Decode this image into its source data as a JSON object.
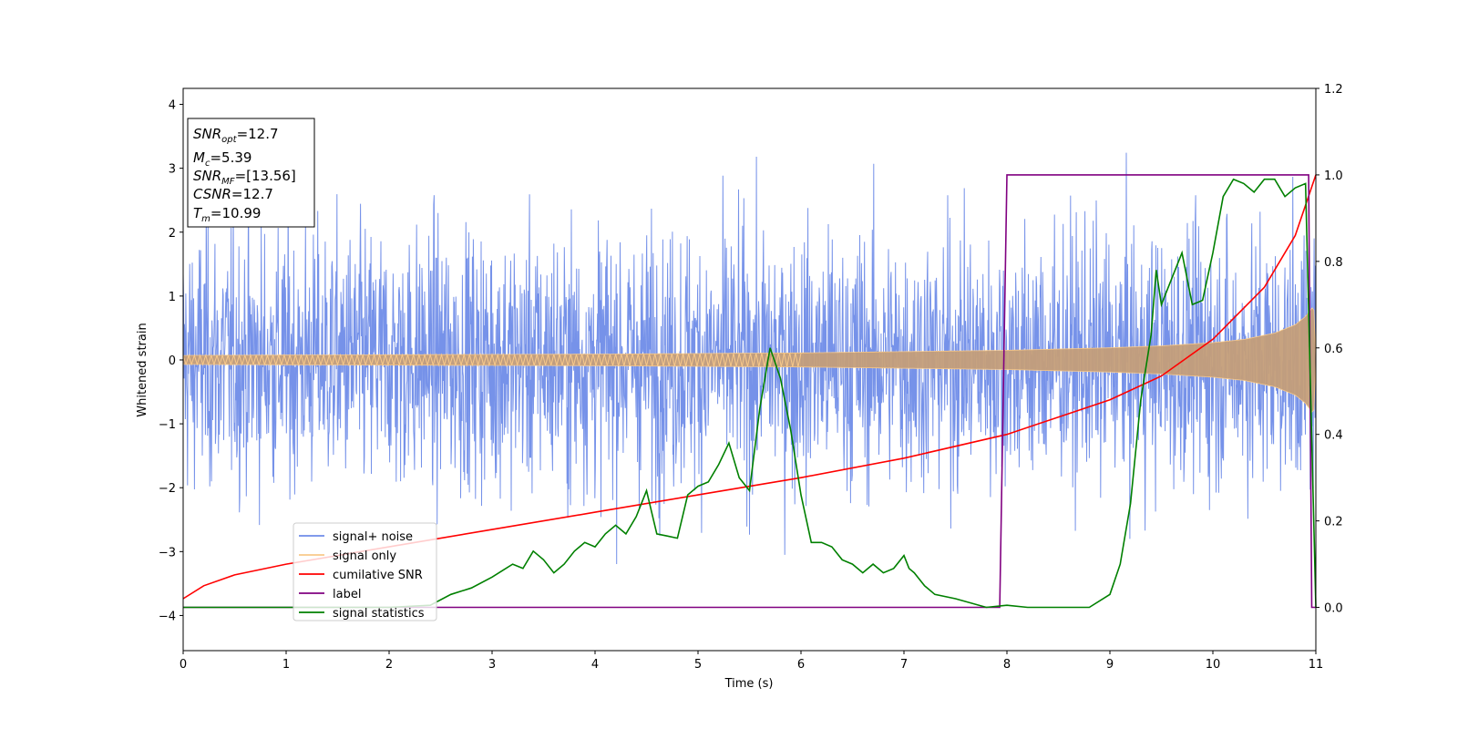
{
  "chart_data": {
    "type": "line",
    "xlabel": "Time (s)",
    "ylabel": "Whitened strain",
    "ylabel_right": "",
    "xlim": [
      0,
      11
    ],
    "ylim": [
      -4.55,
      4.25
    ],
    "ylim_right": [
      -0.1,
      1.2
    ],
    "x_ticks": [
      "0",
      "1",
      "2",
      "3",
      "4",
      "5",
      "6",
      "7",
      "8",
      "9",
      "10",
      "11"
    ],
    "y_ticks": [
      "−4",
      "−3",
      "−2",
      "−1",
      "0",
      "1",
      "2",
      "3",
      "4"
    ],
    "y_ticks_right": [
      "0.0",
      "0.2",
      "0.4",
      "0.6",
      "0.8",
      "1.0",
      "1.2"
    ],
    "grid": false,
    "info_box": {
      "snr_opt": {
        "main": "SNR",
        "sub": "opt",
        "value": "=12.7"
      },
      "mc": {
        "main": "M",
        "sub": "c",
        "value": "=5.39"
      },
      "snr_mf": {
        "main": "SNR",
        "sub": "MF",
        "value": "=[13.56]"
      },
      "csnr": {
        "main": "CSNR",
        "sub": "",
        "value": "=12.7"
      },
      "tm": {
        "main": "T",
        "sub": "m",
        "value": "=10.99"
      }
    },
    "legend": {
      "placement": "lower-left",
      "entries": [
        {
          "label": "signal+ noise",
          "color": "#6f8ce8"
        },
        {
          "label": "signal only",
          "color": "#f8c98a"
        },
        {
          "label": "cumilative SNR",
          "color": "#ff0000"
        },
        {
          "label": "label",
          "color": "#800080"
        },
        {
          "label": "signal statistics",
          "color": "#008000"
        }
      ]
    },
    "series": [
      {
        "name": "signal+ noise",
        "axis": "left",
        "color": "#6f8ce8",
        "description_kind": "noise_band",
        "amplitude_typical": 2.3,
        "amplitude_peak": 3.9
      },
      {
        "name": "signal only",
        "axis": "left",
        "color": "#f8c98a",
        "envelope": {
          "x": [
            0,
            2,
            4,
            6,
            7,
            8,
            9,
            9.5,
            10,
            10.3,
            10.6,
            10.8,
            10.9,
            10.98,
            11
          ],
          "y": [
            0.07,
            0.08,
            0.09,
            0.11,
            0.13,
            0.15,
            0.19,
            0.22,
            0.27,
            0.32,
            0.42,
            0.55,
            0.68,
            0.85,
            0.0
          ]
        }
      },
      {
        "name": "cumilative SNR",
        "axis": "right",
        "color": "#ff0000",
        "x": [
          0,
          0.2,
          0.5,
          1,
          2,
          3,
          4,
          5,
          6,
          7,
          8,
          9,
          9.5,
          10,
          10.5,
          10.8,
          11
        ],
        "y": [
          0.02,
          0.05,
          0.075,
          0.1,
          0.14,
          0.18,
          0.22,
          0.26,
          0.3,
          0.345,
          0.4,
          0.48,
          0.535,
          0.62,
          0.74,
          0.86,
          1.0
        ]
      },
      {
        "name": "label",
        "axis": "right",
        "color": "#800080",
        "x": [
          0,
          7.93,
          8.0,
          10.93,
          10.96,
          11
        ],
        "y": [
          0.0,
          0.0,
          1.0,
          1.0,
          0.0,
          0.0
        ]
      },
      {
        "name": "signal statistics",
        "axis": "right",
        "color": "#008000",
        "x": [
          0,
          1,
          2,
          2.4,
          2.6,
          2.8,
          3.0,
          3.1,
          3.2,
          3.3,
          3.4,
          3.5,
          3.6,
          3.7,
          3.8,
          3.9,
          4.0,
          4.1,
          4.2,
          4.3,
          4.4,
          4.5,
          4.6,
          4.7,
          4.8,
          4.9,
          5.0,
          5.1,
          5.2,
          5.3,
          5.4,
          5.5,
          5.6,
          5.7,
          5.8,
          5.9,
          6.0,
          6.1,
          6.2,
          6.3,
          6.4,
          6.5,
          6.6,
          6.7,
          6.8,
          6.9,
          7.0,
          7.05,
          7.1,
          7.2,
          7.3,
          7.5,
          7.8,
          8.0,
          8.2,
          8.5,
          8.8,
          9.0,
          9.1,
          9.2,
          9.3,
          9.4,
          9.45,
          9.5,
          9.6,
          9.7,
          9.8,
          9.9,
          10.0,
          10.1,
          10.2,
          10.3,
          10.4,
          10.5,
          10.6,
          10.7,
          10.8,
          10.9,
          11.0
        ],
        "y": [
          0.0,
          0.0,
          0.0,
          0.005,
          0.03,
          0.045,
          0.07,
          0.085,
          0.1,
          0.09,
          0.13,
          0.11,
          0.08,
          0.1,
          0.13,
          0.15,
          0.14,
          0.17,
          0.19,
          0.17,
          0.21,
          0.27,
          0.17,
          0.165,
          0.16,
          0.26,
          0.28,
          0.29,
          0.33,
          0.38,
          0.3,
          0.27,
          0.46,
          0.6,
          0.53,
          0.41,
          0.26,
          0.15,
          0.15,
          0.14,
          0.11,
          0.1,
          0.08,
          0.1,
          0.08,
          0.09,
          0.12,
          0.09,
          0.08,
          0.05,
          0.03,
          0.02,
          0.0,
          0.005,
          0.0,
          0.0,
          0.0,
          0.03,
          0.1,
          0.24,
          0.48,
          0.63,
          0.78,
          0.7,
          0.76,
          0.82,
          0.7,
          0.71,
          0.82,
          0.95,
          0.99,
          0.98,
          0.96,
          0.99,
          0.99,
          0.95,
          0.97,
          0.98,
          0.0
        ]
      }
    ]
  }
}
